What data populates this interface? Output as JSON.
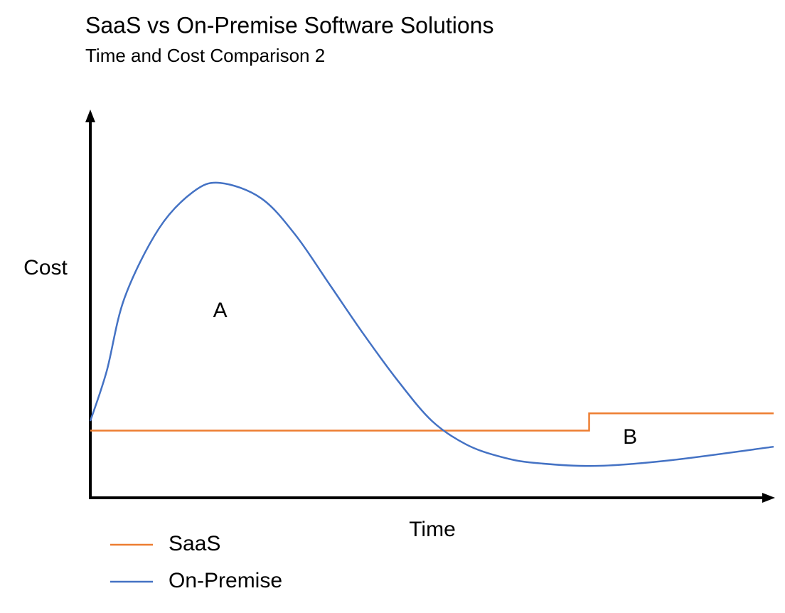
{
  "chart_data": {
    "type": "line",
    "title": "SaaS vs On-Premise Software Solutions",
    "subtitle": "Time and Cost Comparison 2",
    "x_label": "Time",
    "y_label": "Cost",
    "xlim": [
      0,
      100
    ],
    "ylim": [
      0,
      100
    ],
    "series": [
      {
        "name": "SaaS",
        "color": "#ed7d31",
        "step": true,
        "x": [
          0,
          73,
          73,
          100
        ],
        "values": [
          17.5,
          17.5,
          22,
          22
        ]
      },
      {
        "name": "On-Premise",
        "color": "#4472c4",
        "x": [
          0,
          2.4,
          5,
          10,
          15,
          19,
          25,
          30,
          35,
          40,
          45,
          50,
          55,
          60,
          65,
          74,
          85,
          100
        ],
        "values": [
          20,
          33,
          52,
          70,
          79.6,
          82,
          78,
          68.5,
          55.6,
          42.6,
          30.5,
          20,
          13.9,
          10.7,
          9.1,
          8.3,
          9.8,
          13.3
        ]
      }
    ],
    "annotations": [
      {
        "text": "A",
        "x": 19,
        "y": 48.5
      },
      {
        "text": "B",
        "x": 79,
        "y": 15.5
      }
    ]
  }
}
